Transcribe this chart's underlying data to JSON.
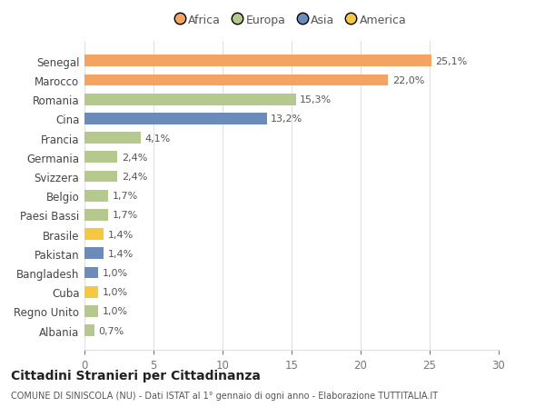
{
  "countries": [
    "Albania",
    "Regno Unito",
    "Cuba",
    "Bangladesh",
    "Pakistan",
    "Brasile",
    "Paesi Bassi",
    "Belgio",
    "Svizzera",
    "Germania",
    "Francia",
    "Cina",
    "Romania",
    "Marocco",
    "Senegal"
  ],
  "values": [
    0.7,
    1.0,
    1.0,
    1.0,
    1.4,
    1.4,
    1.7,
    1.7,
    2.4,
    2.4,
    4.1,
    13.2,
    15.3,
    22.0,
    25.1
  ],
  "labels": [
    "0,7%",
    "1,0%",
    "1,0%",
    "1,0%",
    "1,4%",
    "1,4%",
    "1,7%",
    "1,7%",
    "2,4%",
    "2,4%",
    "4,1%",
    "13,2%",
    "15,3%",
    "22,0%",
    "25,1%"
  ],
  "bar_colors": [
    "#B5C98E",
    "#B5C98E",
    "#F5C842",
    "#6B8CBB",
    "#6B8CBB",
    "#F5C842",
    "#B5C98E",
    "#B5C98E",
    "#B5C98E",
    "#B5C98E",
    "#B5C98E",
    "#6B8CBB",
    "#B5C98E",
    "#F4A460",
    "#F4A460"
  ],
  "legend_colors": {
    "Africa": "#F4A460",
    "Europa": "#B5C98E",
    "Asia": "#6B8CBB",
    "America": "#F5C842"
  },
  "legend_order": [
    "Africa",
    "Europa",
    "Asia",
    "America"
  ],
  "title": "Cittadini Stranieri per Cittadinanza",
  "subtitle": "COMUNE DI SINISCOLA (NU) - Dati ISTAT al 1° gennaio di ogni anno - Elaborazione TUTTITALIA.IT",
  "xlim": [
    0,
    30
  ],
  "xticks": [
    0,
    5,
    10,
    15,
    20,
    25,
    30
  ],
  "bg_color": "#ffffff",
  "grid_color": "#e0e0e0"
}
